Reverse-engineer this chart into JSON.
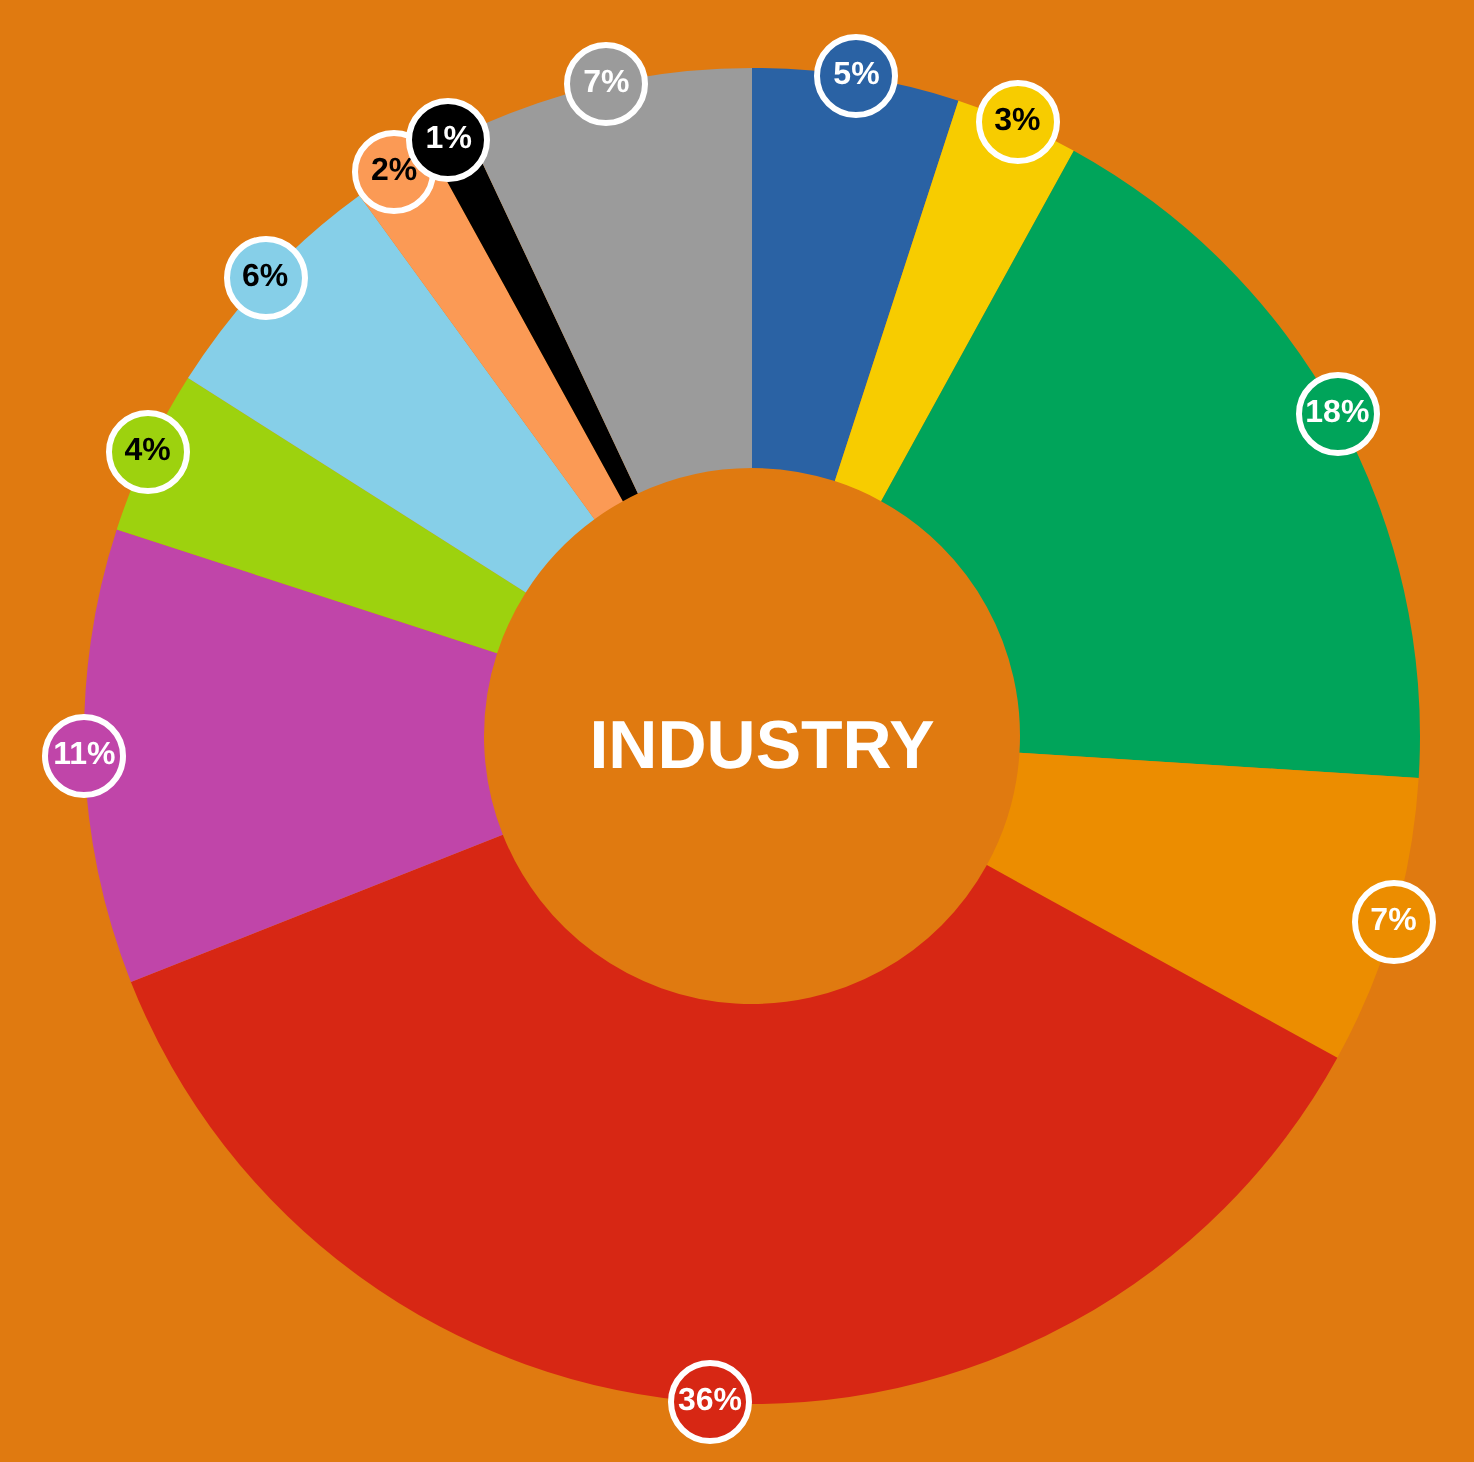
{
  "chart_data": {
    "type": "donut",
    "title": "INDUSTRY",
    "categories": [
      null,
      null,
      null,
      null,
      null,
      null,
      null,
      null,
      null,
      null,
      null
    ],
    "values": [
      5,
      3,
      18,
      7,
      36,
      11,
      4,
      6,
      2,
      1,
      7
    ],
    "colors": [
      "#2a62a4",
      "#f7cc00",
      "#00a45a",
      "#ec8d00",
      "#d72714",
      "#c045a9",
      "#9dd20e",
      "#86cfe8",
      "#fb9a55",
      "#000000",
      "#9b9b9b"
    ],
    "value_labels": [
      "5%",
      "3%",
      "18%",
      "7%",
      "36%",
      "11%",
      "4%",
      "6%",
      "2%",
      "1%",
      "7%"
    ]
  }
}
